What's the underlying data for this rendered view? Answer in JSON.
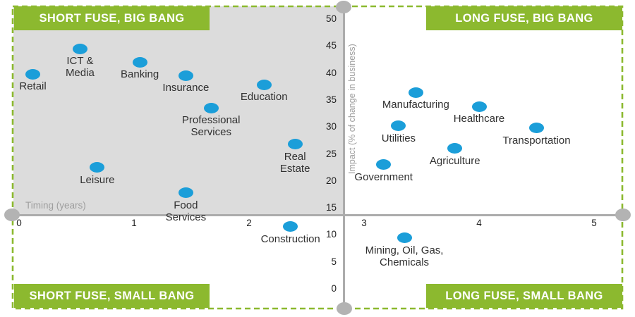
{
  "quadrant_labels": {
    "top_left": "SHORT FUSE, BIG BANG",
    "top_right": "LONG FUSE, BIG BANG",
    "bottom_left": "SHORT FUSE, SMALL BANG",
    "bottom_right": "LONG FUSE, SMALL BANG"
  },
  "colors": {
    "banner_green": "#8CB92F",
    "dot_blue": "#1B9ED9",
    "quadrant_gray": "#DCDCDC",
    "axis_gray": "#ACACAC",
    "endpoint_gray": "#B3B3B3",
    "point_label": "#303030",
    "axis_title_gray": "#9E9E9E"
  },
  "chart_data": {
    "type": "scatter",
    "title": "",
    "xlabel": "Timing (years)",
    "ylabel": "Impact  (% of change in business)",
    "xlim": [
      0,
      5
    ],
    "ylim": [
      0,
      50
    ],
    "x_ticks": [
      0,
      1,
      2,
      3,
      4,
      5
    ],
    "y_ticks": [
      0,
      5,
      10,
      15,
      20,
      25,
      30,
      35,
      40,
      45,
      50
    ],
    "grid": false,
    "legend": false,
    "points": [
      {
        "name": "retail",
        "label": "Retail",
        "label_lines": [
          "Retail"
        ],
        "x": 0.12,
        "y": 39.8
      },
      {
        "name": "ict-media",
        "label": "ICT & Media",
        "label_lines": [
          "ICT &",
          "Media"
        ],
        "x": 0.53,
        "y": 44.5
      },
      {
        "name": "banking",
        "label": "Banking",
        "label_lines": [
          "Banking"
        ],
        "x": 1.05,
        "y": 42.0
      },
      {
        "name": "insurance",
        "label": "Insurance",
        "label_lines": [
          "Insurance"
        ],
        "x": 1.45,
        "y": 39.5
      },
      {
        "name": "education",
        "label": "Education",
        "label_lines": [
          "Education"
        ],
        "x": 2.13,
        "y": 37.8
      },
      {
        "name": "professional-services",
        "label": "Professional Services",
        "label_lines": [
          "Professional",
          "Services"
        ],
        "x": 1.67,
        "y": 33.5
      },
      {
        "name": "real-estate",
        "label": "Real Estate",
        "label_lines": [
          "Real",
          "Estate"
        ],
        "x": 2.4,
        "y": 26.8
      },
      {
        "name": "leisure",
        "label": "Leisure",
        "label_lines": [
          "Leisure"
        ],
        "x": 0.68,
        "y": 22.5
      },
      {
        "name": "food-services",
        "label": "Food Services",
        "label_lines": [
          "Food",
          "Services"
        ],
        "x": 1.45,
        "y": 17.8
      },
      {
        "name": "construction",
        "label": "Construction",
        "label_lines": [
          "Construction"
        ],
        "x": 2.36,
        "y": 11.5
      },
      {
        "name": "mining-oil-gas-chemicals",
        "label": "Mining, Oil, Gas, Chemicals",
        "label_lines": [
          "Mining, Oil, Gas,",
          "Chemicals"
        ],
        "x": 3.35,
        "y": 9.4
      },
      {
        "name": "government",
        "label": "Government",
        "label_lines": [
          "Government"
        ],
        "x": 3.17,
        "y": 23.0
      },
      {
        "name": "utilities",
        "label": "Utilities",
        "label_lines": [
          "Utilities"
        ],
        "x": 3.3,
        "y": 30.2
      },
      {
        "name": "manufacturing",
        "label": "Manufacturing",
        "label_lines": [
          "Manufacturing"
        ],
        "x": 3.45,
        "y": 36.4
      },
      {
        "name": "healthcare",
        "label": "Healthcare",
        "label_lines": [
          "Healthcare"
        ],
        "x": 4.0,
        "y": 33.8
      },
      {
        "name": "agriculture",
        "label": "Agriculture",
        "label_lines": [
          "Agriculture"
        ],
        "x": 3.79,
        "y": 26.0
      },
      {
        "name": "transportation",
        "label": "Transportation",
        "label_lines": [
          "Transportation"
        ],
        "x": 4.5,
        "y": 29.8
      }
    ]
  }
}
